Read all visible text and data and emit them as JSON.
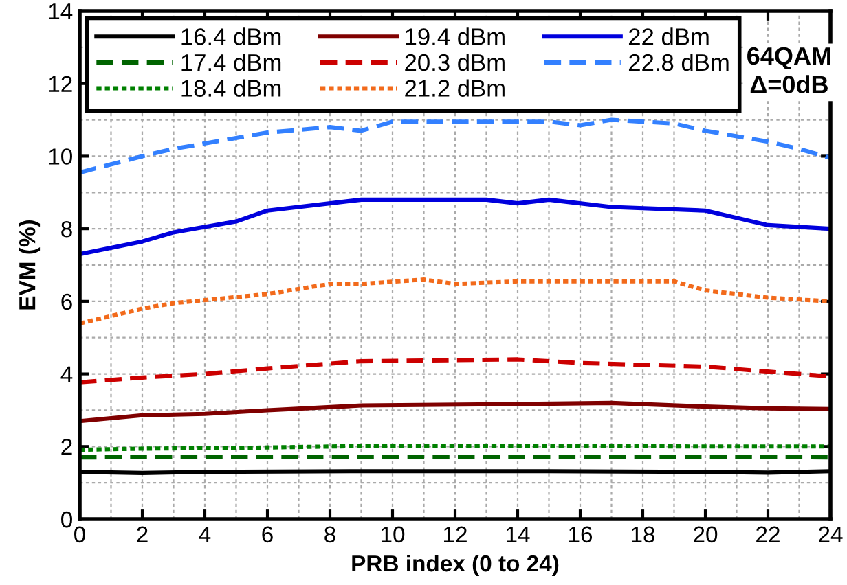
{
  "chart_data": {
    "type": "line",
    "xlabel": "PRB index (0 to 24)",
    "ylabel": "EVM (%)",
    "xlim": [
      0,
      24
    ],
    "ylim": [
      0,
      14
    ],
    "xticks": [
      0,
      2,
      4,
      6,
      8,
      10,
      12,
      14,
      16,
      18,
      20,
      22,
      24
    ],
    "yticks": [
      0,
      2,
      4,
      6,
      8,
      10,
      12,
      14
    ],
    "grid": true,
    "legend": "top left",
    "annotations": [
      "64QAM\nΔ=0dB"
    ],
    "series": [
      {
        "name": "16.4 dBm",
        "color": "#000000",
        "line_style": "solid",
        "x": [
          0,
          2,
          4,
          9,
          15,
          20,
          22,
          24
        ],
        "values": [
          1.3,
          1.27,
          1.3,
          1.32,
          1.32,
          1.3,
          1.28,
          1.32
        ]
      },
      {
        "name": "17.4 dBm",
        "color": "#006400",
        "line_style": "dashed",
        "x": [
          0,
          10,
          15,
          20,
          24
        ],
        "values": [
          1.7,
          1.72,
          1.72,
          1.72,
          1.7
        ]
      },
      {
        "name": "18.4 dBm",
        "color": "#008000",
        "line_style": "dotted",
        "x": [
          0,
          2,
          5,
          8,
          10,
          14,
          20,
          24
        ],
        "values": [
          1.91,
          1.94,
          1.96,
          2.0,
          2.02,
          2.02,
          2.0,
          2.0
        ]
      },
      {
        "name": "19.4 dBm",
        "color": "#800000",
        "line_style": "solid",
        "x": [
          0,
          2,
          4,
          6,
          9,
          14,
          17,
          20,
          22,
          24
        ],
        "values": [
          2.7,
          2.86,
          2.9,
          3.0,
          3.13,
          3.17,
          3.2,
          3.1,
          3.05,
          3.03
        ]
      },
      {
        "name": "20.3 dBm",
        "color": "#cc0000",
        "line_style": "dashed",
        "x": [
          0,
          2,
          4,
          6,
          9,
          14,
          16,
          20,
          24
        ],
        "values": [
          3.77,
          3.9,
          4.0,
          4.15,
          4.35,
          4.4,
          4.3,
          4.2,
          3.93
        ]
      },
      {
        "name": "21.2 dBm",
        "color": "#f26a1b",
        "line_style": "dotted",
        "x": [
          0,
          2,
          3,
          6,
          8,
          9,
          11,
          12,
          14,
          19,
          20,
          22,
          24
        ],
        "values": [
          5.39,
          5.8,
          5.95,
          6.2,
          6.48,
          6.48,
          6.6,
          6.48,
          6.55,
          6.55,
          6.3,
          6.1,
          6.0
        ]
      },
      {
        "name": "22 dBm",
        "color": "#0000dd",
        "line_style": "solid",
        "x": [
          0,
          2,
          3,
          5,
          6,
          9,
          13,
          14,
          15,
          17,
          20,
          22,
          24
        ],
        "values": [
          7.3,
          7.65,
          7.9,
          8.2,
          8.5,
          8.8,
          8.8,
          8.7,
          8.8,
          8.6,
          8.5,
          8.1,
          8.0
        ]
      },
      {
        "name": "22.8 dBm",
        "color": "#3380ff",
        "line_style": "dashed",
        "x": [
          0,
          2,
          3,
          5,
          6,
          8,
          9,
          10,
          15,
          16,
          17,
          19,
          20,
          22,
          23,
          24
        ],
        "values": [
          9.55,
          10.0,
          10.2,
          10.5,
          10.65,
          10.8,
          10.7,
          10.95,
          10.95,
          10.85,
          11.0,
          10.9,
          10.7,
          10.4,
          10.2,
          9.95
        ]
      }
    ]
  }
}
